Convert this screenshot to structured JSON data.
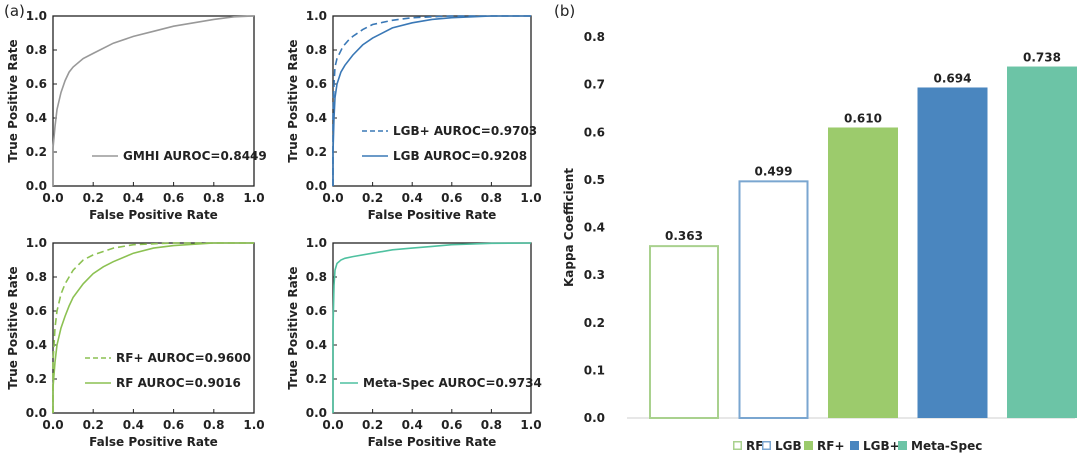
{
  "panel_labels": {
    "a": "(a)",
    "b": "(b)"
  },
  "chart_data": [
    {
      "type": "line",
      "xlabel": "False Positive Rate",
      "ylabel": "True Positive Rate",
      "xlim": [
        0,
        1
      ],
      "ylim": [
        0,
        1
      ],
      "xticks": [
        "0.0",
        "0.2",
        "0.4",
        "0.6",
        "0.8",
        "1.0"
      ],
      "yticks": [
        "0.0",
        "0.2",
        "0.4",
        "0.6",
        "0.8",
        "1.0"
      ],
      "legend_position": "lower-right",
      "series": [
        {
          "name": "GMHI AUROC=0.8449",
          "color": "#999999",
          "dash": "solid",
          "x": [
            0,
            0,
            0.01,
            0.02,
            0.04,
            0.06,
            0.08,
            0.1,
            0.15,
            0.2,
            0.3,
            0.4,
            0.5,
            0.6,
            0.7,
            0.8,
            0.9,
            1.0
          ],
          "y": [
            0,
            0.22,
            0.35,
            0.45,
            0.55,
            0.62,
            0.67,
            0.7,
            0.75,
            0.78,
            0.84,
            0.88,
            0.91,
            0.94,
            0.96,
            0.98,
            0.995,
            1.0
          ]
        }
      ]
    },
    {
      "type": "line",
      "xlabel": "False Positive Rate",
      "ylabel": "True Positive Rate",
      "xlim": [
        0,
        1
      ],
      "ylim": [
        0,
        1
      ],
      "xticks": [
        "0.0",
        "0.2",
        "0.4",
        "0.6",
        "0.8",
        "1.0"
      ],
      "yticks": [
        "0.0",
        "0.2",
        "0.4",
        "0.6",
        "0.8",
        "1.0"
      ],
      "legend_position": "center-right",
      "series": [
        {
          "name": "LGB+ AUROC=0.9703",
          "color": "#3a78b6",
          "dash": "dashed",
          "x": [
            0,
            0,
            0.005,
            0.01,
            0.02,
            0.05,
            0.08,
            0.1,
            0.15,
            0.2,
            0.3,
            0.4,
            0.5,
            0.6,
            0.8,
            1.0
          ],
          "y": [
            0,
            0.4,
            0.6,
            0.7,
            0.75,
            0.82,
            0.86,
            0.88,
            0.92,
            0.95,
            0.975,
            0.99,
            0.995,
            1.0,
            1.0,
            1.0
          ]
        },
        {
          "name": "LGB AUROC=0.9208",
          "color": "#3a78b6",
          "dash": "solid",
          "x": [
            0,
            0,
            0.005,
            0.01,
            0.02,
            0.04,
            0.06,
            0.1,
            0.15,
            0.2,
            0.3,
            0.4,
            0.5,
            0.6,
            0.8,
            1.0
          ],
          "y": [
            0,
            0.2,
            0.4,
            0.52,
            0.6,
            0.67,
            0.71,
            0.77,
            0.83,
            0.87,
            0.93,
            0.96,
            0.98,
            0.99,
            1.0,
            1.0
          ]
        }
      ]
    },
    {
      "type": "line",
      "xlabel": "False Positive Rate",
      "ylabel": "True Positive Rate",
      "xlim": [
        0,
        1
      ],
      "ylim": [
        0,
        1
      ],
      "xticks": [
        "0.0",
        "0.2",
        "0.4",
        "0.6",
        "0.8",
        "1.0"
      ],
      "yticks": [
        "0.0",
        "0.2",
        "0.4",
        "0.6",
        "0.8",
        "1.0"
      ],
      "legend_position": "lower-right",
      "series": [
        {
          "name": "RF+ AUROC=0.9600",
          "color": "#8cc152",
          "dash": "dashed",
          "x": [
            0,
            0,
            0.01,
            0.02,
            0.04,
            0.06,
            0.08,
            0.1,
            0.15,
            0.2,
            0.3,
            0.4,
            0.5,
            0.6,
            0.8,
            1.0
          ],
          "y": [
            0,
            0.3,
            0.5,
            0.6,
            0.7,
            0.76,
            0.8,
            0.84,
            0.9,
            0.93,
            0.97,
            0.99,
            0.995,
            1.0,
            1.0,
            1.0
          ]
        },
        {
          "name": "RF AUROC=0.9016",
          "color": "#8cc152",
          "dash": "solid",
          "x": [
            0,
            0,
            0.01,
            0.02,
            0.04,
            0.06,
            0.08,
            0.1,
            0.15,
            0.2,
            0.25,
            0.3,
            0.4,
            0.5,
            0.6,
            0.8,
            1.0
          ],
          "y": [
            0,
            0.15,
            0.3,
            0.4,
            0.5,
            0.57,
            0.63,
            0.68,
            0.76,
            0.82,
            0.86,
            0.89,
            0.94,
            0.97,
            0.985,
            1.0,
            1.0
          ]
        }
      ]
    },
    {
      "type": "line",
      "xlabel": "False Positive Rate",
      "ylabel": "True Positive Rate",
      "xlim": [
        0,
        1
      ],
      "ylim": [
        0,
        1
      ],
      "xticks": [
        "0.0",
        "0.2",
        "0.4",
        "0.6",
        "0.8",
        "1.0"
      ],
      "yticks": [
        "0.0",
        "0.2",
        "0.4",
        "0.6",
        "0.8",
        "1.0"
      ],
      "legend_position": "lower-right",
      "series": [
        {
          "name": "Meta-Spec AUROC=0.9734",
          "color": "#4fc1a0",
          "dash": "solid",
          "x": [
            0,
            0,
            0.005,
            0.01,
            0.02,
            0.04,
            0.06,
            0.1,
            0.2,
            0.3,
            0.4,
            0.5,
            0.6,
            0.8,
            1.0
          ],
          "y": [
            0,
            0.5,
            0.75,
            0.84,
            0.88,
            0.9,
            0.91,
            0.92,
            0.94,
            0.96,
            0.97,
            0.98,
            0.99,
            0.998,
            1.0
          ]
        }
      ]
    },
    {
      "type": "bar",
      "ylabel": "Kappa Coefficient",
      "ylim": [
        0,
        0.8
      ],
      "yticks": [
        "0.0",
        "0.1",
        "0.2",
        "0.3",
        "0.4",
        "0.5",
        "0.6",
        "0.7",
        "0.8"
      ],
      "legend_position": "bottom",
      "categories": [
        "RF",
        "LGB",
        "RF+",
        "LGB+",
        "Meta-Spec"
      ],
      "values": [
        0.363,
        0.499,
        0.61,
        0.694,
        0.738
      ],
      "value_labels": [
        "0.363",
        "0.499",
        "0.610",
        "0.694",
        "0.738"
      ],
      "colors": [
        "#a9d18e",
        "#7aa6d0",
        "#9ccb6c",
        "#4a86bf",
        "#6cc4a6"
      ],
      "filled": [
        false,
        false,
        true,
        true,
        true
      ]
    }
  ]
}
